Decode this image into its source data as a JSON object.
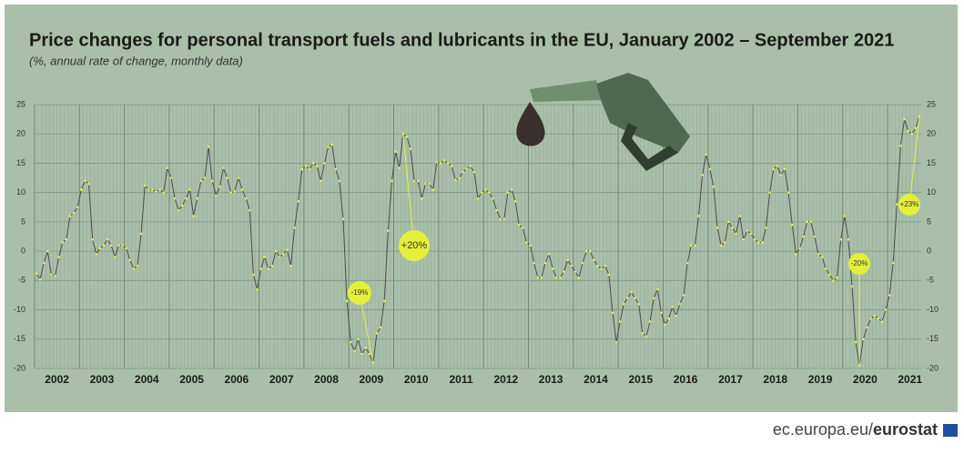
{
  "chart_data": {
    "type": "line",
    "title": "Price changes for personal transport fuels and lubricants in the EU, January 2002 – September 2021",
    "subtitle": "(%, annual rate of change, monthly data)",
    "x_labels": [
      "2002",
      "2003",
      "2004",
      "2005",
      "2006",
      "2007",
      "2008",
      "2009",
      "2010",
      "2011",
      "2012",
      "2013",
      "2014",
      "2015",
      "2016",
      "2017",
      "2018",
      "2019",
      "2020",
      "2021"
    ],
    "ylim": [
      -20,
      25
    ],
    "yticks": [
      -20,
      -15,
      -10,
      -5,
      0,
      5,
      10,
      15,
      20,
      25
    ],
    "grid": true,
    "series": [
      {
        "color": "#4d4d4d",
        "marker_color": "#e3ef5a",
        "values": [
          -3.8,
          -4.8,
          -2,
          0,
          -4,
          -4.2,
          -1,
          1.5,
          2,
          6,
          6.5,
          7.5,
          10.5,
          12,
          11.5,
          2,
          -0.5,
          0.5,
          1,
          2,
          1,
          -1,
          1,
          1,
          0.5,
          -1.5,
          -3,
          -2.5,
          3,
          11.2,
          10.5,
          10.5,
          10.2,
          10.5,
          10,
          14.2,
          12.5,
          9,
          7,
          7.8,
          9,
          10.5,
          6,
          9,
          12,
          12.5,
          17.8,
          12,
          9.5,
          11,
          14.2,
          12.5,
          10,
          10.2,
          12.5,
          10.5,
          9,
          7,
          -4,
          -6.5,
          -3,
          -1,
          -3,
          -2.5,
          0,
          -1,
          -0.5,
          0.2,
          -2.5,
          4,
          8.5,
          14,
          14.5,
          14,
          15,
          14.5,
          12,
          15,
          17.8,
          18.2,
          14,
          12,
          5.5,
          -8.5,
          -15.5,
          -17,
          -15,
          -17.5,
          -16.5,
          -17.5,
          -19,
          -14,
          -13,
          -8.5,
          3.5,
          12,
          17,
          14.2,
          20,
          19.5,
          17.5,
          12,
          12,
          9,
          11.5,
          11.5,
          10.5,
          15.2,
          15,
          15.5,
          15,
          14.5,
          12.2,
          12.5,
          13.5,
          14,
          14.5,
          13.5,
          9,
          10,
          10.5,
          10,
          9,
          7,
          5.5,
          5.5,
          10,
          10.5,
          8.5,
          4.5,
          4,
          1.5,
          1,
          -2,
          -4.5,
          -4.5,
          -2,
          -0.5,
          -3,
          -4.5,
          -4.5,
          -3.5,
          -1.5,
          -2.5,
          -3.5,
          -4.5,
          -2,
          0,
          0,
          -1.5,
          -2.5,
          -3,
          -2.5,
          -4,
          -10.5,
          -15.5,
          -12,
          -9,
          -8,
          -7,
          -8,
          -9,
          -14,
          -14.5,
          -12,
          -8,
          -6.5,
          -10.5,
          -12.5,
          -11.5,
          -9.5,
          -11,
          -9,
          -7.5,
          -2,
          1,
          1,
          6,
          13,
          16.5,
          14,
          11,
          4,
          1,
          1.5,
          5,
          4,
          3,
          6,
          2,
          3.5,
          3,
          2,
          1.5,
          1.5,
          4,
          10,
          14,
          14.5,
          13,
          14,
          10,
          4.5,
          -0.5,
          0.5,
          2.5,
          5,
          5,
          2.5,
          -0.5,
          -1,
          -3,
          -4,
          -5,
          -4.5,
          2,
          6,
          2,
          -6,
          -15.5,
          -19.5,
          -15,
          -13,
          -11.5,
          -11,
          -11.5,
          -12,
          -10,
          -7.5,
          -2,
          8,
          18,
          22.5,
          20.5,
          20,
          21,
          23
        ]
      }
    ],
    "annotations": [
      "-19%",
      "+20%",
      "-20%",
      "+23%"
    ]
  },
  "footer": {
    "site": "ec.europa.eu/",
    "brand": "eurostat"
  }
}
